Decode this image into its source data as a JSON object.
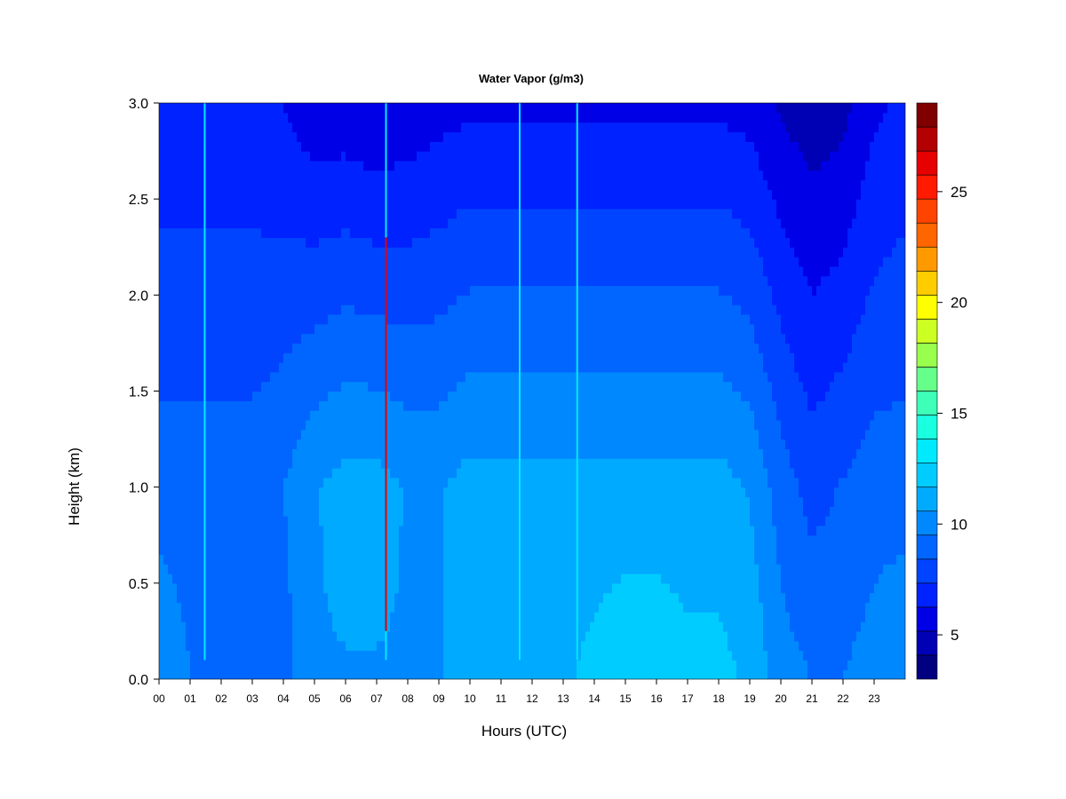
{
  "chart_data": {
    "type": "heatmap",
    "title": "Water Vapor (g/m3)",
    "xlabel": "Hours (UTC)",
    "ylabel": "Height (km)",
    "x_ticks": [
      "00",
      "01",
      "02",
      "03",
      "04",
      "05",
      "06",
      "07",
      "08",
      "09",
      "10",
      "11",
      "12",
      "13",
      "14",
      "15",
      "16",
      "17",
      "18",
      "19",
      "20",
      "21",
      "22",
      "23"
    ],
    "y_ticks": [
      "0.0",
      "0.5",
      "1.0",
      "1.5",
      "2.0",
      "2.5",
      "3.0"
    ],
    "xlim": [
      0,
      24
    ],
    "ylim": [
      0,
      3.0
    ],
    "colorbar": {
      "range": [
        3,
        29
      ],
      "ticks": [
        "5",
        "10",
        "15",
        "20",
        "25"
      ],
      "tick_values": [
        5,
        10,
        15,
        20,
        25
      ],
      "colors": [
        "#000080",
        "#0000b5",
        "#0000e6",
        "#0022ff",
        "#0044ff",
        "#0066ff",
        "#0088ff",
        "#00aaff",
        "#00ccff",
        "#00eaff",
        "#1affe0",
        "#3dffb8",
        "#66ff8a",
        "#99ff4d",
        "#ccff22",
        "#ffff00",
        "#ffcc00",
        "#ff9900",
        "#ff6600",
        "#ff4400",
        "#ff1a00",
        "#e60000",
        "#b30000",
        "#800000"
      ]
    },
    "hourly_profiles": [
      {
        "hour": 0,
        "surface": 10.5,
        "mid": 9.0,
        "top": 6.5
      },
      {
        "hour": 1,
        "surface": 9.5,
        "mid": 9.0,
        "top": 6.5
      },
      {
        "hour": 2,
        "surface": 9.0,
        "mid": 9.0,
        "top": 6.5
      },
      {
        "hour": 3,
        "surface": 9.0,
        "mid": 9.0,
        "top": 6.5
      },
      {
        "hour": 4,
        "surface": 9.0,
        "mid": 9.5,
        "top": 6.2
      },
      {
        "hour": 5,
        "surface": 10.5,
        "mid": 10.5,
        "top": 5.5
      },
      {
        "hour": 6,
        "surface": 10.5,
        "mid": 11.0,
        "top": 5.5
      },
      {
        "hour": 7,
        "surface": 10.5,
        "mid": 11.0,
        "top": 5.2
      },
      {
        "hour": 8,
        "surface": 10.5,
        "mid": 10.5,
        "top": 5.5
      },
      {
        "hour": 9,
        "surface": 10.5,
        "mid": 10.5,
        "top": 5.8
      },
      {
        "hour": 10,
        "surface": 11.0,
        "mid": 11.0,
        "top": 6.0
      },
      {
        "hour": 11,
        "surface": 11.0,
        "mid": 11.0,
        "top": 6.0
      },
      {
        "hour": 12,
        "surface": 11.0,
        "mid": 11.0,
        "top": 6.0
      },
      {
        "hour": 13,
        "surface": 11.5,
        "mid": 11.0,
        "top": 6.0
      },
      {
        "hour": 14,
        "surface": 12.0,
        "mid": 11.0,
        "top": 6.0
      },
      {
        "hour": 15,
        "surface": 12.5,
        "mid": 11.0,
        "top": 6.0
      },
      {
        "hour": 16,
        "surface": 12.5,
        "mid": 11.0,
        "top": 6.0
      },
      {
        "hour": 17,
        "surface": 12.0,
        "mid": 11.0,
        "top": 6.0
      },
      {
        "hour": 18,
        "surface": 12.0,
        "mid": 11.0,
        "top": 6.0
      },
      {
        "hour": 19,
        "surface": 11.5,
        "mid": 10.5,
        "top": 5.8
      },
      {
        "hour": 20,
        "surface": 10.0,
        "mid": 9.0,
        "top": 5.0
      },
      {
        "hour": 21,
        "surface": 9.5,
        "mid": 8.0,
        "top": 4.5
      },
      {
        "hour": 22,
        "surface": 9.5,
        "mid": 8.5,
        "top": 4.8
      },
      {
        "hour": 23,
        "surface": 10.0,
        "mid": 9.0,
        "top": 6.0
      },
      {
        "hour": 24,
        "surface": 10.5,
        "mid": 9.0,
        "top": 6.5
      }
    ],
    "spikes": [
      {
        "hour": 1.47,
        "value": 13
      },
      {
        "hour": 7.3,
        "value": 26
      },
      {
        "hour": 11.6,
        "value": 13
      },
      {
        "hour": 13.45,
        "value": 14
      }
    ]
  }
}
